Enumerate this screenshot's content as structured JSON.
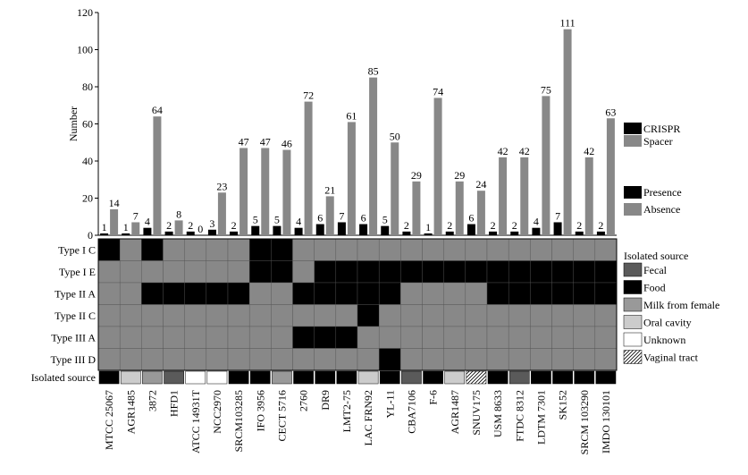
{
  "chart_data": {
    "type": "bar",
    "ylabel": "Number",
    "ylim": [
      0,
      120
    ],
    "yticks": [
      "0",
      "20",
      "40",
      "60",
      "80",
      "100",
      "120"
    ],
    "categories": [
      "MTCC 25067",
      "AGR1485",
      "3872",
      "HFD1",
      "ATCC 14931T",
      "NCC2970",
      "SRCM103285",
      "IFO 3956",
      "CECT 5716",
      "2760",
      "DR9",
      "LMT2-75",
      "LAC FRN92",
      "YL-11",
      "CBA7106",
      "F-6",
      "AGR1487",
      "SNUV175",
      "USM 8633",
      "FTDC 8312",
      "LDTM 7301",
      "SK152",
      "SRCM 103290",
      "IMDO 130101"
    ],
    "series": [
      {
        "name": "CRISPR",
        "color": "#000000",
        "values": [
          1,
          1,
          4,
          2,
          2,
          3,
          2,
          5,
          5,
          4,
          6,
          7,
          6,
          5,
          2,
          1,
          2,
          6,
          2,
          2,
          4,
          7,
          2,
          2
        ],
        "labels": [
          "1",
          "1",
          "4",
          "2",
          "2",
          "3",
          "2",
          "5",
          "5",
          "4",
          "6",
          "7",
          "6",
          "5",
          "2",
          "1",
          "2",
          "6",
          "2",
          "2",
          "4",
          "7",
          "2",
          "2"
        ]
      },
      {
        "name": "Spacer",
        "color": "#888888",
        "values": [
          14,
          7,
          64,
          8,
          0,
          23,
          47,
          47,
          46,
          72,
          21,
          61,
          85,
          50,
          29,
          74,
          29,
          24,
          42,
          42,
          75,
          111,
          42,
          63
        ],
        "labels": [
          "14",
          "7",
          "64",
          "8",
          "0",
          "23",
          "47",
          "47",
          "46",
          "72",
          "21",
          "61",
          "85",
          "50",
          "29",
          "74",
          "29",
          "24",
          "42",
          "42",
          "75",
          "111",
          "42",
          "63"
        ]
      }
    ],
    "heatmap": {
      "rows": [
        "Type I C",
        "Type I E",
        "Type II A",
        "Type II C",
        "Type III A",
        "Type III D"
      ],
      "legend": [
        {
          "label": "Presence",
          "color": "#000000"
        },
        {
          "label": "Absence",
          "color": "#888888"
        }
      ],
      "presence": [
        [
          1,
          0,
          1,
          0,
          0,
          0,
          0,
          1,
          1,
          0,
          0,
          0,
          0,
          0,
          0,
          0,
          0,
          0,
          0,
          0,
          0,
          0,
          0,
          0
        ],
        [
          0,
          0,
          0,
          0,
          0,
          0,
          0,
          1,
          1,
          0,
          1,
          1,
          1,
          1,
          1,
          1,
          1,
          1,
          1,
          1,
          1,
          1,
          1,
          1
        ],
        [
          0,
          0,
          1,
          1,
          1,
          1,
          1,
          0,
          0,
          1,
          1,
          1,
          1,
          1,
          0,
          0,
          0,
          0,
          1,
          1,
          1,
          1,
          1,
          1
        ],
        [
          0,
          0,
          0,
          0,
          0,
          0,
          0,
          0,
          0,
          0,
          0,
          0,
          1,
          0,
          0,
          0,
          0,
          0,
          0,
          0,
          0,
          0,
          0,
          0
        ],
        [
          0,
          0,
          0,
          0,
          0,
          0,
          0,
          0,
          0,
          1,
          1,
          1,
          0,
          0,
          0,
          0,
          0,
          0,
          0,
          0,
          0,
          0,
          0,
          0
        ],
        [
          0,
          0,
          0,
          0,
          0,
          0,
          0,
          0,
          0,
          0,
          0,
          0,
          0,
          1,
          0,
          0,
          0,
          0,
          0,
          0,
          0,
          0,
          0,
          0
        ]
      ]
    },
    "source": {
      "row_label": "Isolated source",
      "legend_title": "Isolated source",
      "legend": [
        {
          "key": "fecal",
          "label": "Fecal",
          "color": "#5a5a5a"
        },
        {
          "key": "food",
          "label": "Food",
          "color": "#000000"
        },
        {
          "key": "milk",
          "label": "Milk from female",
          "color": "#999999"
        },
        {
          "key": "oral",
          "label": "Oral cavity",
          "color": "#cccccc"
        },
        {
          "key": "unknown",
          "label": "Unknown",
          "color": "#ffffff"
        },
        {
          "key": "vaginal",
          "label": "Vaginal tract",
          "color": "hatch"
        }
      ],
      "values": [
        "food",
        "oral",
        "milk",
        "fecal",
        "unknown",
        "unknown",
        "food",
        "food",
        "milk",
        "food",
        "food",
        "food",
        "oral",
        "food",
        "fecal",
        "food",
        "oral",
        "vaginal",
        "food",
        "fecal",
        "food",
        "food",
        "food",
        "food"
      ]
    }
  }
}
